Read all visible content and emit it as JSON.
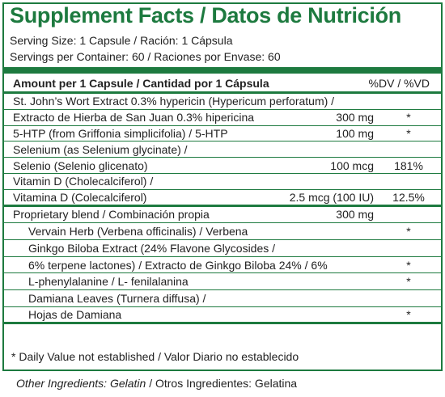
{
  "title": "Supplement Facts / Datos de Nutrición",
  "serving_size": "Serving Size: 1 Capsule / Ración: 1 Cápsula",
  "servings_per_container": "Servings per Container: 60 / Raciones por Envase: 60",
  "table": {
    "header": {
      "amount": "Amount per 1 Capsule / Cantidad por 1 Cápsula",
      "dv": "%DV / %VD"
    },
    "rows": [
      {
        "name": "St. John’s Wort Extract 0.3% hypericin (Hypericum perforatum) /"
      },
      {
        "name": "Extracto de Hierba de San Juan 0.3% hipericina",
        "amount": "300 mg",
        "dv": "*"
      },
      {
        "name": "5-HTP (from Griffonia simplicifolia) / 5-HTP",
        "amount": "100 mg",
        "dv": "*"
      },
      {
        "name": "Selenium (as Selenium glycinate) /"
      },
      {
        "name": "Selenio (Selenio glicenato)",
        "amount": "100 mcg",
        "dv": "181%"
      },
      {
        "name": "Vitamin D (Cholecalciferol) /"
      },
      {
        "name": "Vitamina D (Colecalciferol)",
        "amount": "2.5 mcg (100 IU)",
        "dv": "12.5%"
      }
    ],
    "proprietary_blend": {
      "name": "Proprietary blend / Combinación propia",
      "amount": "300 mg",
      "ingredients": [
        {
          "name": "Vervain Herb (Verbena officinalis) / Verbena",
          "dv": "*"
        },
        {
          "name": "Ginkgo Biloba Extract (24% Flavone Glycosides /"
        },
        {
          "name": "6% terpene lactones) / Extracto de Ginkgo Biloba 24% / 6%",
          "dv": "*"
        },
        {
          "name": "L-phenylalanine / L- fenilalanina",
          "dv": "*"
        },
        {
          "name": "Damiana Leaves (Turnera diffusa) /"
        },
        {
          "name": "Hojas de Damiana",
          "dv": "*"
        }
      ]
    }
  },
  "footnote": "* Daily Value not established / Valor Diario no establecido",
  "other_ingredients": {
    "english": "Other Ingredients: Gelatin",
    "spanish": "/ Otros Ingredientes: Gelatina"
  }
}
